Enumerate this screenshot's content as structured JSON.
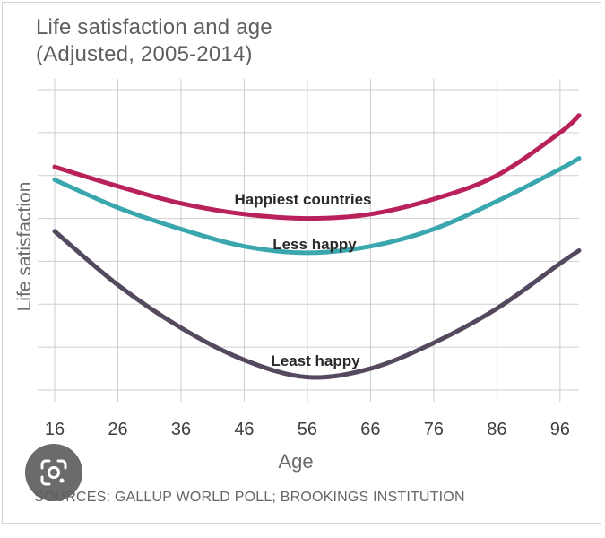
{
  "chart_data": {
    "type": "line",
    "title": "Life satisfaction and age",
    "subtitle": "(Adjusted, 2005-2014)",
    "xlabel": "Age",
    "ylabel": "Life satisfaction",
    "x_ticks": [
      16,
      26,
      36,
      46,
      56,
      66,
      76,
      86,
      96
    ],
    "xlim": [
      16,
      99
    ],
    "ylim": [
      0,
      7
    ],
    "grid": true,
    "legend": "inline labels",
    "series": [
      {
        "name": "Happiest countries",
        "color": "#b8215a",
        "x": [
          16,
          26,
          36,
          46,
          56,
          66,
          76,
          86,
          96,
          99
        ],
        "y": [
          5.2,
          4.75,
          4.35,
          4.1,
          4.0,
          4.1,
          4.45,
          5.0,
          6.0,
          6.4
        ]
      },
      {
        "name": "Less happy",
        "color": "#3aa6ad",
        "x": [
          16,
          26,
          36,
          46,
          56,
          66,
          76,
          86,
          96,
          99
        ],
        "y": [
          4.9,
          4.25,
          3.75,
          3.35,
          3.2,
          3.35,
          3.75,
          4.4,
          5.15,
          5.4
        ]
      },
      {
        "name": "Least happy",
        "color": "#54495e",
        "x": [
          16,
          26,
          36,
          46,
          56,
          66,
          76,
          86,
          96,
          99
        ],
        "y": [
          3.7,
          2.45,
          1.45,
          0.7,
          0.3,
          0.5,
          1.1,
          1.9,
          2.95,
          3.25
        ]
      }
    ]
  },
  "source": "SOURCES: GALLUP WORLD POLL; BROOKINGS INSTITUTION",
  "icons": {
    "lens": "google-lens-icon"
  }
}
